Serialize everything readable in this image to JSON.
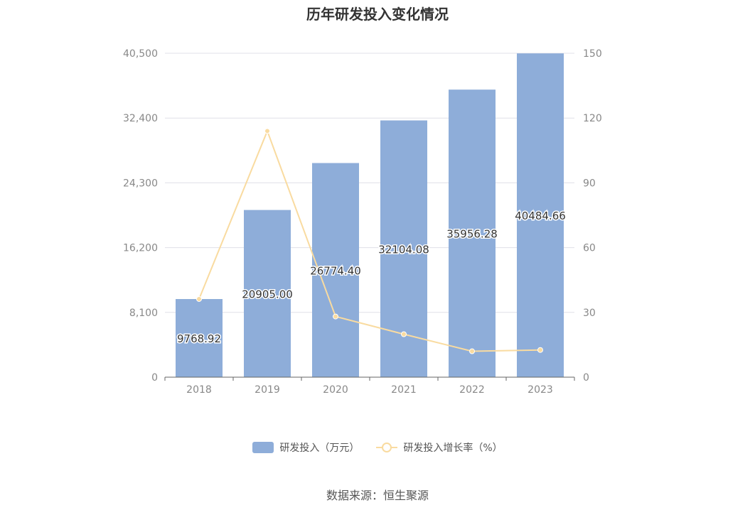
{
  "chart_data": {
    "type": "bar",
    "title": "历年研发投入变化情况",
    "categories": [
      "2018",
      "2019",
      "2020",
      "2021",
      "2022",
      "2023"
    ],
    "series": [
      {
        "name": "研发投入（万元）",
        "type": "bar",
        "axis": "left",
        "values": [
          9768.92,
          20905.0,
          26774.4,
          32104.08,
          35956.28,
          40484.66
        ],
        "labels": [
          "9768.92",
          "20905.00",
          "26774.40",
          "32104.08",
          "35956.28",
          "40484.66"
        ],
        "color": "#8eadd9"
      },
      {
        "name": "研发投入增长率（%）",
        "type": "line",
        "axis": "right",
        "values": [
          36.2,
          114.0,
          28.1,
          19.9,
          12.0,
          12.6
        ],
        "color": "#f9dba0"
      }
    ],
    "y_left": {
      "ticks": [
        "0",
        "8,100",
        "16,200",
        "24,300",
        "32,400",
        "40,500"
      ],
      "ylim": [
        0,
        40500
      ]
    },
    "y_right": {
      "ticks": [
        "0",
        "30",
        "60",
        "90",
        "120",
        "150"
      ],
      "ylim": [
        0,
        150
      ]
    },
    "grid": true,
    "legend_position": "bottom",
    "source": "数据来源：恒生聚源"
  }
}
